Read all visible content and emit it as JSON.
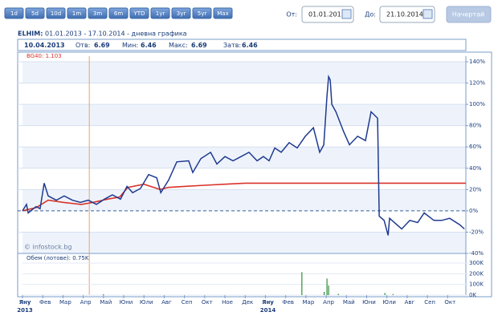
{
  "toolbar": {
    "periods": [
      "1d",
      "5d",
      "10d",
      "1m",
      "3m",
      "6m",
      "YTD",
      "1yr",
      "3yr",
      "5yr",
      "Max"
    ],
    "from_label": "От:",
    "from_value": "01.01.2013",
    "to_label": "До:",
    "to_value": "21.10.2014",
    "button": "Начертай"
  },
  "chart_data": {
    "type": "line",
    "title": "ELHIM:",
    "subtitle": "01.01.2013 - 17.10.2014 - дневна графика",
    "info": {
      "date": "10.04.2013",
      "fields": [
        {
          "label": "Отв:",
          "value": 6.69
        },
        {
          "label": "Мин:",
          "value": 6.46
        },
        {
          "label": "Макс:",
          "value": 6.69
        },
        {
          "label": "Затв:",
          "value": 6.46
        }
      ]
    },
    "watermark": "© infostock.bg",
    "cursor_x": 3.3,
    "xlim": [
      0,
      21.9
    ],
    "xticks": [
      {
        "value": 0,
        "label": "Яну"
      },
      {
        "value": 1,
        "label": "Фев"
      },
      {
        "value": 2,
        "label": "Мар"
      },
      {
        "value": 3,
        "label": "Апр"
      },
      {
        "value": 4,
        "label": "Май"
      },
      {
        "value": 5,
        "label": "Юни"
      },
      {
        "value": 6,
        "label": "Юли"
      },
      {
        "value": 7,
        "label": "Авг"
      },
      {
        "value": 8,
        "label": "Сеп"
      },
      {
        "value": 9,
        "label": "Окт"
      },
      {
        "value": 10,
        "label": "Ное"
      },
      {
        "value": 11,
        "label": "Дек"
      },
      {
        "value": 12,
        "label": "Яну"
      },
      {
        "value": 13,
        "label": "Фев"
      },
      {
        "value": 14,
        "label": "Мар"
      },
      {
        "value": 15,
        "label": "Апр"
      },
      {
        "value": 16,
        "label": "Май"
      },
      {
        "value": 17,
        "label": "Юни"
      },
      {
        "value": 18,
        "label": "Юли"
      },
      {
        "value": 19,
        "label": "Авг"
      },
      {
        "value": 20,
        "label": "Сеп"
      },
      {
        "value": 21,
        "label": "Окт"
      }
    ],
    "xtick_years": [
      {
        "value": 0,
        "label": "2013"
      },
      {
        "value": 12,
        "label": "2014"
      }
    ],
    "ylim": [
      -40,
      140
    ],
    "yticks": [
      {
        "value": -40,
        "label": "-40%"
      },
      {
        "value": -20,
        "label": "-20%"
      },
      {
        "value": 0,
        "label": "0%"
      },
      {
        "value": 20,
        "label": "20%"
      },
      {
        "value": 40,
        "label": "40%"
      },
      {
        "value": 60,
        "label": "60%"
      },
      {
        "value": 80,
        "label": "80%"
      },
      {
        "value": 100,
        "label": "100%"
      },
      {
        "value": 120,
        "label": "120%"
      },
      {
        "value": 140,
        "label": "140%"
      }
    ],
    "grid": true,
    "series": [
      {
        "color": "#1f3a8f",
        "x": [
          0,
          0.2,
          0.28,
          0.67,
          0.87,
          1.07,
          1.27,
          1.67,
          2.06,
          2.46,
          2.86,
          3.25,
          3.65,
          4.05,
          4.44,
          4.84,
          5.16,
          5.44,
          5.83,
          6.23,
          6.63,
          6.83,
          7.22,
          7.62,
          8.21,
          8.41,
          8.81,
          9.29,
          9.6,
          10.0,
          10.4,
          10.8,
          11.19,
          11.59,
          11.9,
          12.18,
          12.46,
          12.78,
          13.17,
          13.57,
          13.97,
          14.37,
          14.68,
          14.88,
          15.04,
          15.12,
          15.2,
          15.28,
          15.48,
          15.87,
          16.15,
          16.55,
          16.94,
          17.22,
          17.54,
          17.62,
          17.86,
          18.06,
          18.13,
          18.73,
          19.13,
          19.52,
          19.84,
          20.32,
          20.71,
          21.1,
          21.59,
          21.83
        ],
        "values": [
          0,
          6,
          -2,
          4,
          2,
          26,
          14,
          10,
          14,
          10,
          8,
          10,
          6,
          11,
          15,
          11,
          23,
          17,
          21,
          34,
          31,
          17,
          29,
          46,
          47,
          36,
          49,
          55,
          44,
          51,
          47,
          51,
          55,
          47,
          51,
          47,
          59,
          55,
          64,
          59,
          70,
          78,
          55,
          62,
          108,
          126,
          123,
          100,
          93,
          74,
          62,
          70,
          66,
          93,
          87,
          -5,
          -9,
          -23,
          -7,
          -17,
          -9,
          -11,
          -2,
          -9,
          -9,
          -7,
          -13,
          -17
        ]
      },
      {
        "name": "BG40: 1.103",
        "color": "#d9342b",
        "x": [
          0,
          0.67,
          1.27,
          2,
          2.9,
          3.5,
          4.2,
          4.8,
          5.2,
          6,
          6.8,
          7.2,
          8,
          9,
          10,
          11,
          12,
          21.9
        ],
        "values": [
          0,
          3,
          10,
          8,
          6,
          8,
          11,
          13,
          22,
          25,
          20,
          22,
          23,
          24,
          25,
          26,
          26,
          26
        ]
      }
    ],
    "volume": {
      "label": "Обем (лотове): 0.75K",
      "color": "#2f8f3a",
      "x": [
        4.0,
        13.8,
        14.9,
        15.04,
        15.12,
        15.6,
        17.9,
        18.3
      ],
      "values": [
        8000,
        215000,
        30000,
        155000,
        90000,
        12000,
        20000,
        10000
      ],
      "ylim": [
        0,
        360000
      ],
      "yticks": [
        {
          "value": 0,
          "label": "0K"
        },
        {
          "value": 100000,
          "label": "100K"
        },
        {
          "value": 200000,
          "label": "200K"
        },
        {
          "value": 300000,
          "label": "300K"
        }
      ]
    }
  }
}
